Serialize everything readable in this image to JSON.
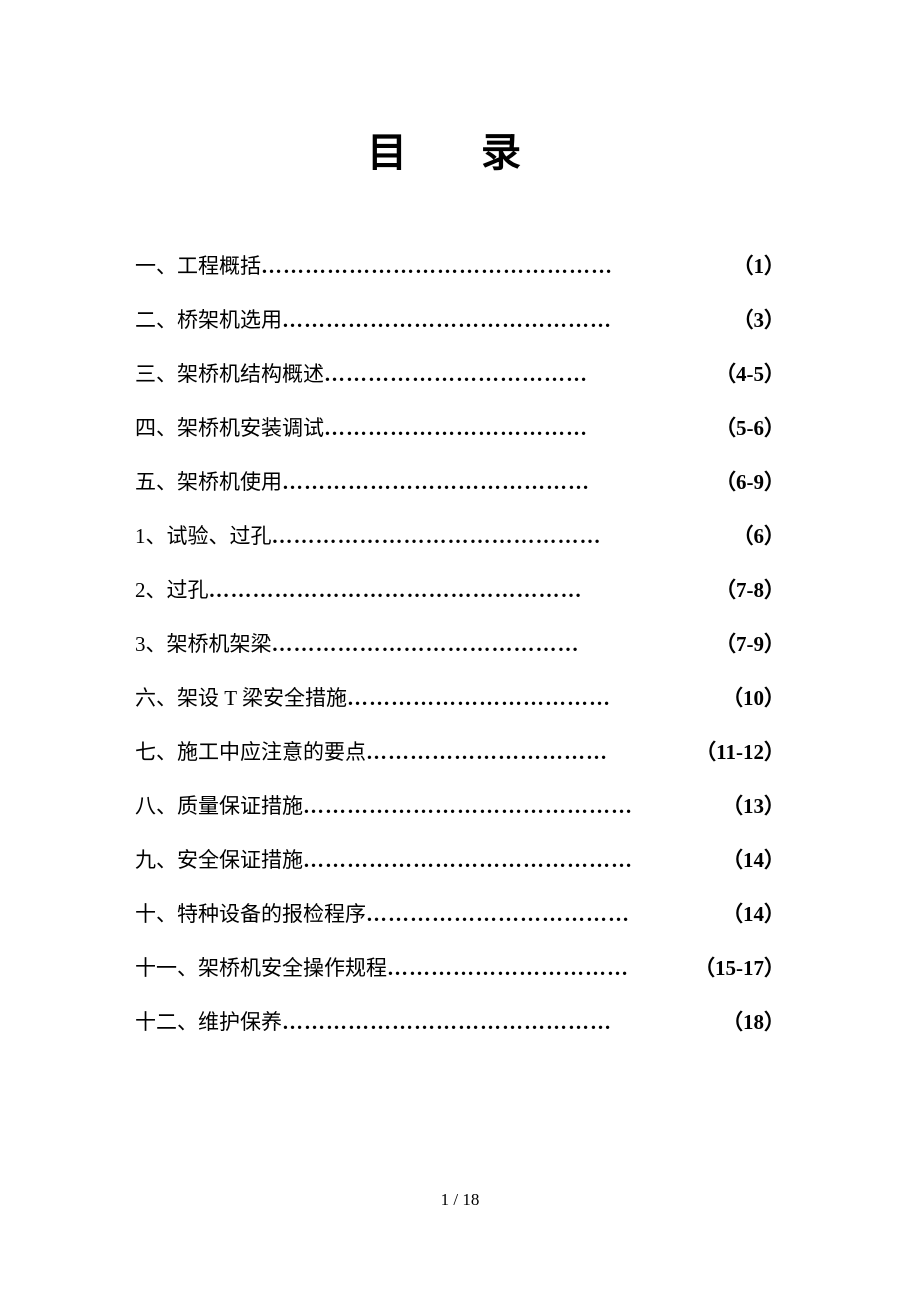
{
  "title": "目 录",
  "toc": {
    "items": [
      {
        "label": "一、工程概括",
        "page": "（1）",
        "dots": "…………………………………………"
      },
      {
        "label": "二、桥架机选用",
        "page": "（3）",
        "dots": "………………………………………"
      },
      {
        "label": "三、架桥机结构概述",
        "page": "（4-5）",
        "dots": "………………………………"
      },
      {
        "label": "四、架桥机安装调试",
        "page": "（5-6）",
        "dots": "………………………………"
      },
      {
        "label": "五、架桥机使用",
        "page": "（6-9）",
        "dots": "……………………………………"
      },
      {
        "label": "1、试验、过孔",
        "page": "（6）",
        "dots": "………………………………………"
      },
      {
        "label": "2、过孔",
        "page": "（7-8）",
        "dots": "……………………………………………"
      },
      {
        "label": "3、架桥机架梁",
        "page": "（7-9）",
        "dots": "……………………………………"
      },
      {
        "label": "六、架设 T 梁安全措施",
        "page": "（10）",
        "dots": "………………………………"
      },
      {
        "label": "七、施工中应注意的要点",
        "page": "（11-12）",
        "dots": "……………………………"
      },
      {
        "label": "八、质量保证措施",
        "page": "（13）",
        "dots": "………………………………………"
      },
      {
        "label": "九、安全保证措施",
        "page": "（14）",
        "dots": "………………………………………"
      },
      {
        "label": "十、特种设备的报检程序",
        "page": "（14）",
        "dots": "………………………………"
      },
      {
        "label": "十一、架桥机安全操作规程",
        "page": "（15-17）",
        "dots": "……………………………"
      },
      {
        "label": "十二、维护保养",
        "page": "（18）",
        "dots": "………………………………………"
      }
    ]
  },
  "footer": {
    "page_indicator": "1 / 18"
  },
  "styling": {
    "background_color": "#ffffff",
    "text_color": "#000000",
    "title_fontsize": 40,
    "body_fontsize": 21,
    "footer_fontsize": 17,
    "line_spacing": 24,
    "font_family": "SimSun"
  }
}
